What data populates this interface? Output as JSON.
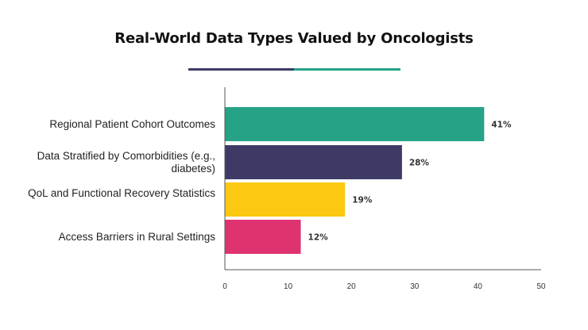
{
  "title": "Real-World Data Types Valued by Oncologists",
  "accent": {
    "rule_left": "#3d3b66",
    "rule_right": "#26a386"
  },
  "chart_data": {
    "type": "bar",
    "orientation": "horizontal",
    "categories": [
      "Regional Patient Cohort Outcomes",
      "Data Stratified by Comorbidities (e.g., diabetes)",
      "QoL and Functional Recovery Statistics",
      "Access Barriers in Rural Settings"
    ],
    "values": [
      41,
      28,
      19,
      12
    ],
    "value_labels": [
      "41%",
      "28%",
      "19%",
      "12%"
    ],
    "colors": [
      "#26a386",
      "#3d3b66",
      "#fcc811",
      "#de3370"
    ],
    "xlim": [
      0,
      50
    ],
    "xticks": [
      0,
      10,
      20,
      30,
      40,
      50
    ],
    "grid": false,
    "legend": "none"
  }
}
